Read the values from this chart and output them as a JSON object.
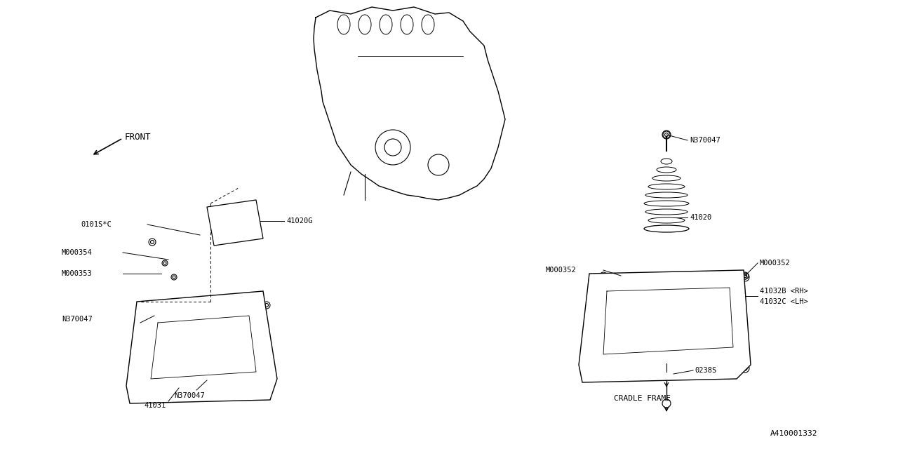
{
  "background_color": "#ffffff",
  "line_color": "#000000",
  "text_color": "#000000",
  "part_number_ref": "A410001332",
  "labels": {
    "front": "FRONT",
    "cradle_frame": "CRADLE FRAME",
    "p41020G": "41020G",
    "p41020": "41020",
    "p41031": "41031",
    "p41032B": "41032B <RH>",
    "p41032C": "41032C <LH>",
    "p0101SC": "0101S*C",
    "pM000354": "M000354",
    "pM000353": "M000353",
    "pN370047": "N370047",
    "pM000352": "M000352",
    "p0238S": "0238S"
  }
}
